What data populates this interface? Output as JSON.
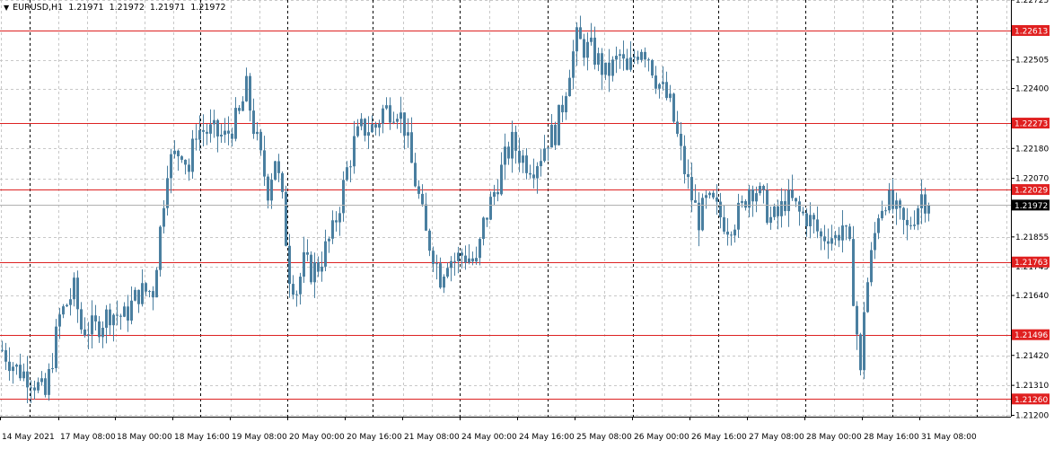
{
  "header": {
    "symbol_tf": "EURUSD,H1",
    "open": "1.21971",
    "high": "1.21972",
    "low": "1.21971",
    "close": "1.21972"
  },
  "colors": {
    "candle": "#4a7fa0",
    "level_line": "#dd2222",
    "level_label_bg": "#e02020",
    "current_label_bg": "#000000",
    "grid": "#c8c8c8",
    "day_separator": "#000000"
  },
  "chart_data": {
    "type": "candlestick",
    "symbol": "EURUSD",
    "timeframe": "H1",
    "ylim": [
      1.21195,
      1.22725
    ],
    "y_tick_labels": [
      "1.22725",
      "1.22505",
      "1.22400",
      "1.22180",
      "1.22070",
      "1.21855",
      "1.21745",
      "1.21640",
      "1.21420",
      "1.21310",
      "1.21200"
    ],
    "y_ticks": [
      1.22725,
      1.22505,
      1.224,
      1.2218,
      1.2207,
      1.21855,
      1.21745,
      1.2164,
      1.2142,
      1.2131,
      1.212
    ],
    "x_tick_labels": [
      "14 May 2021",
      "17 May 08:00",
      "18 May 00:00",
      "18 May 16:00",
      "19 May 08:00",
      "20 May 00:00",
      "20 May 16:00",
      "21 May 08:00",
      "24 May 00:00",
      "24 May 16:00",
      "25 May 08:00",
      "26 May 00:00",
      "26 May 16:00",
      "27 May 08:00",
      "28 May 00:00",
      "28 May 16:00",
      "31 May 08:00"
    ],
    "horizontal_levels": [
      1.22613,
      1.22273,
      1.22029,
      1.21763,
      1.21496,
      1.2126
    ],
    "horizontal_level_labels": [
      "1.22613",
      "1.22273",
      "1.22029",
      "1.21763",
      "1.21496",
      "1.21260"
    ],
    "current_price": 1.21972,
    "current_price_label": "1.21972",
    "close_path": [
      [
        0,
        1.2144
      ],
      [
        4,
        1.2137
      ],
      [
        8,
        1.2134
      ],
      [
        12,
        1.2127
      ],
      [
        16,
        1.2156
      ],
      [
        20,
        1.2166
      ],
      [
        22,
        1.2152
      ],
      [
        26,
        1.2152
      ],
      [
        30,
        1.2158
      ],
      [
        34,
        1.2156
      ],
      [
        38,
        1.2165
      ],
      [
        42,
        1.2166
      ],
      [
        44,
        1.2188
      ],
      [
        46,
        1.2212
      ],
      [
        50,
        1.2218
      ],
      [
        52,
        1.221
      ],
      [
        54,
        1.2225
      ],
      [
        58,
        1.2224
      ],
      [
        62,
        1.2222
      ],
      [
        66,
        1.223
      ],
      [
        68,
        1.224
      ],
      [
        70,
        1.2226
      ],
      [
        72,
        1.2214
      ],
      [
        74,
        1.2203
      ],
      [
        76,
        1.2215
      ],
      [
        78,
        1.2198
      ],
      [
        80,
        1.2172
      ],
      [
        82,
        1.2166
      ],
      [
        84,
        1.2176
      ],
      [
        86,
        1.2173
      ],
      [
        88,
        1.2175
      ],
      [
        90,
        1.2181
      ],
      [
        92,
        1.2187
      ],
      [
        94,
        1.2198
      ],
      [
        96,
        1.221
      ],
      [
        98,
        1.222
      ],
      [
        100,
        1.2225
      ],
      [
        104,
        1.2226
      ],
      [
        106,
        1.2232
      ],
      [
        110,
        1.2233
      ],
      [
        112,
        1.2226
      ],
      [
        114,
        1.2212
      ],
      [
        116,
        1.22
      ],
      [
        118,
        1.2186
      ],
      [
        120,
        1.218
      ],
      [
        122,
        1.2171
      ],
      [
        124,
        1.2178
      ],
      [
        126,
        1.2177
      ],
      [
        128,
        1.2179
      ],
      [
        130,
        1.2178
      ],
      [
        132,
        1.2175
      ],
      [
        134,
        1.219
      ],
      [
        136,
        1.2198
      ],
      [
        138,
        1.2206
      ],
      [
        140,
        1.2214
      ],
      [
        142,
        1.222
      ],
      [
        144,
        1.2216
      ],
      [
        146,
        1.2213
      ],
      [
        148,
        1.2212
      ],
      [
        150,
        1.2216
      ],
      [
        152,
        1.2222
      ],
      [
        154,
        1.2224
      ],
      [
        156,
        1.2234
      ],
      [
        158,
        1.2248
      ],
      [
        160,
        1.2258
      ],
      [
        162,
        1.2255
      ],
      [
        164,
        1.2254
      ],
      [
        166,
        1.225
      ],
      [
        168,
        1.2245
      ],
      [
        170,
        1.2248
      ],
      [
        172,
        1.2252
      ],
      [
        174,
        1.2245
      ],
      [
        176,
        1.2252
      ],
      [
        178,
        1.2256
      ],
      [
        180,
        1.2252
      ],
      [
        182,
        1.2244
      ],
      [
        184,
        1.2239
      ],
      [
        186,
        1.2234
      ],
      [
        188,
        1.2222
      ],
      [
        190,
        1.221
      ],
      [
        192,
        1.22
      ],
      [
        194,
        1.2192
      ],
      [
        196,
        1.2198
      ],
      [
        198,
        1.2197
      ],
      [
        200,
        1.2193
      ],
      [
        202,
        1.219
      ],
      [
        204,
        1.2192
      ],
      [
        206,
        1.2196
      ],
      [
        208,
        1.2204
      ],
      [
        210,
        1.2203
      ],
      [
        212,
        1.2198
      ],
      [
        214,
        1.2192
      ],
      [
        216,
        1.2193
      ],
      [
        218,
        1.2199
      ],
      [
        220,
        1.2198
      ],
      [
        222,
        1.2194
      ],
      [
        224,
        1.2193
      ],
      [
        226,
        1.219
      ],
      [
        228,
        1.2185
      ],
      [
        230,
        1.2187
      ],
      [
        232,
        1.2185
      ],
      [
        234,
        1.219
      ],
      [
        236,
        1.218
      ],
      [
        238,
        1.215
      ],
      [
        239,
        1.2134
      ],
      [
        240,
        1.216
      ],
      [
        242,
        1.2178
      ],
      [
        244,
        1.2195
      ],
      [
        246,
        1.22
      ],
      [
        248,
        1.2196
      ],
      [
        250,
        1.2192
      ],
      [
        252,
        1.2188
      ],
      [
        254,
        1.2194
      ],
      [
        256,
        1.2201
      ],
      [
        258,
        1.2197
      ]
    ]
  }
}
